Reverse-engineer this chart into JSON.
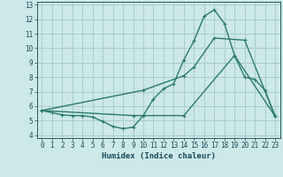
{
  "xlabel": "Humidex (Indice chaleur)",
  "bg_color": "#cce8e8",
  "grid_color": "#a8cccc",
  "line_color": "#2a7a6a",
  "xlim": [
    0,
    23
  ],
  "ylim": [
    4,
    13
  ],
  "xticks": [
    0,
    1,
    2,
    3,
    4,
    5,
    6,
    7,
    8,
    9,
    10,
    11,
    12,
    13,
    14,
    15,
    16,
    17,
    18,
    19,
    20,
    21,
    22,
    23
  ],
  "yticks": [
    4,
    5,
    6,
    7,
    8,
    9,
    10,
    11,
    12,
    13
  ],
  "line1_x": [
    0,
    1,
    2,
    3,
    4,
    5,
    6,
    7,
    8,
    9,
    10,
    11,
    12,
    13,
    14,
    15,
    16,
    17,
    18,
    19,
    20,
    21,
    22,
    23
  ],
  "line1_y": [
    5.7,
    5.55,
    5.4,
    5.35,
    5.35,
    5.25,
    4.95,
    4.6,
    4.45,
    4.55,
    5.35,
    6.5,
    7.2,
    7.55,
    9.2,
    10.5,
    12.2,
    12.65,
    11.7,
    9.5,
    8.0,
    7.85,
    7.1,
    5.3
  ],
  "line2_x": [
    0,
    10,
    14,
    15,
    17,
    20,
    23
  ],
  "line2_y": [
    5.7,
    7.1,
    8.1,
    8.7,
    10.7,
    10.55,
    5.3
  ],
  "line3_x": [
    0,
    9,
    14,
    19,
    23
  ],
  "line3_y": [
    5.7,
    5.35,
    5.35,
    9.5,
    5.3
  ]
}
